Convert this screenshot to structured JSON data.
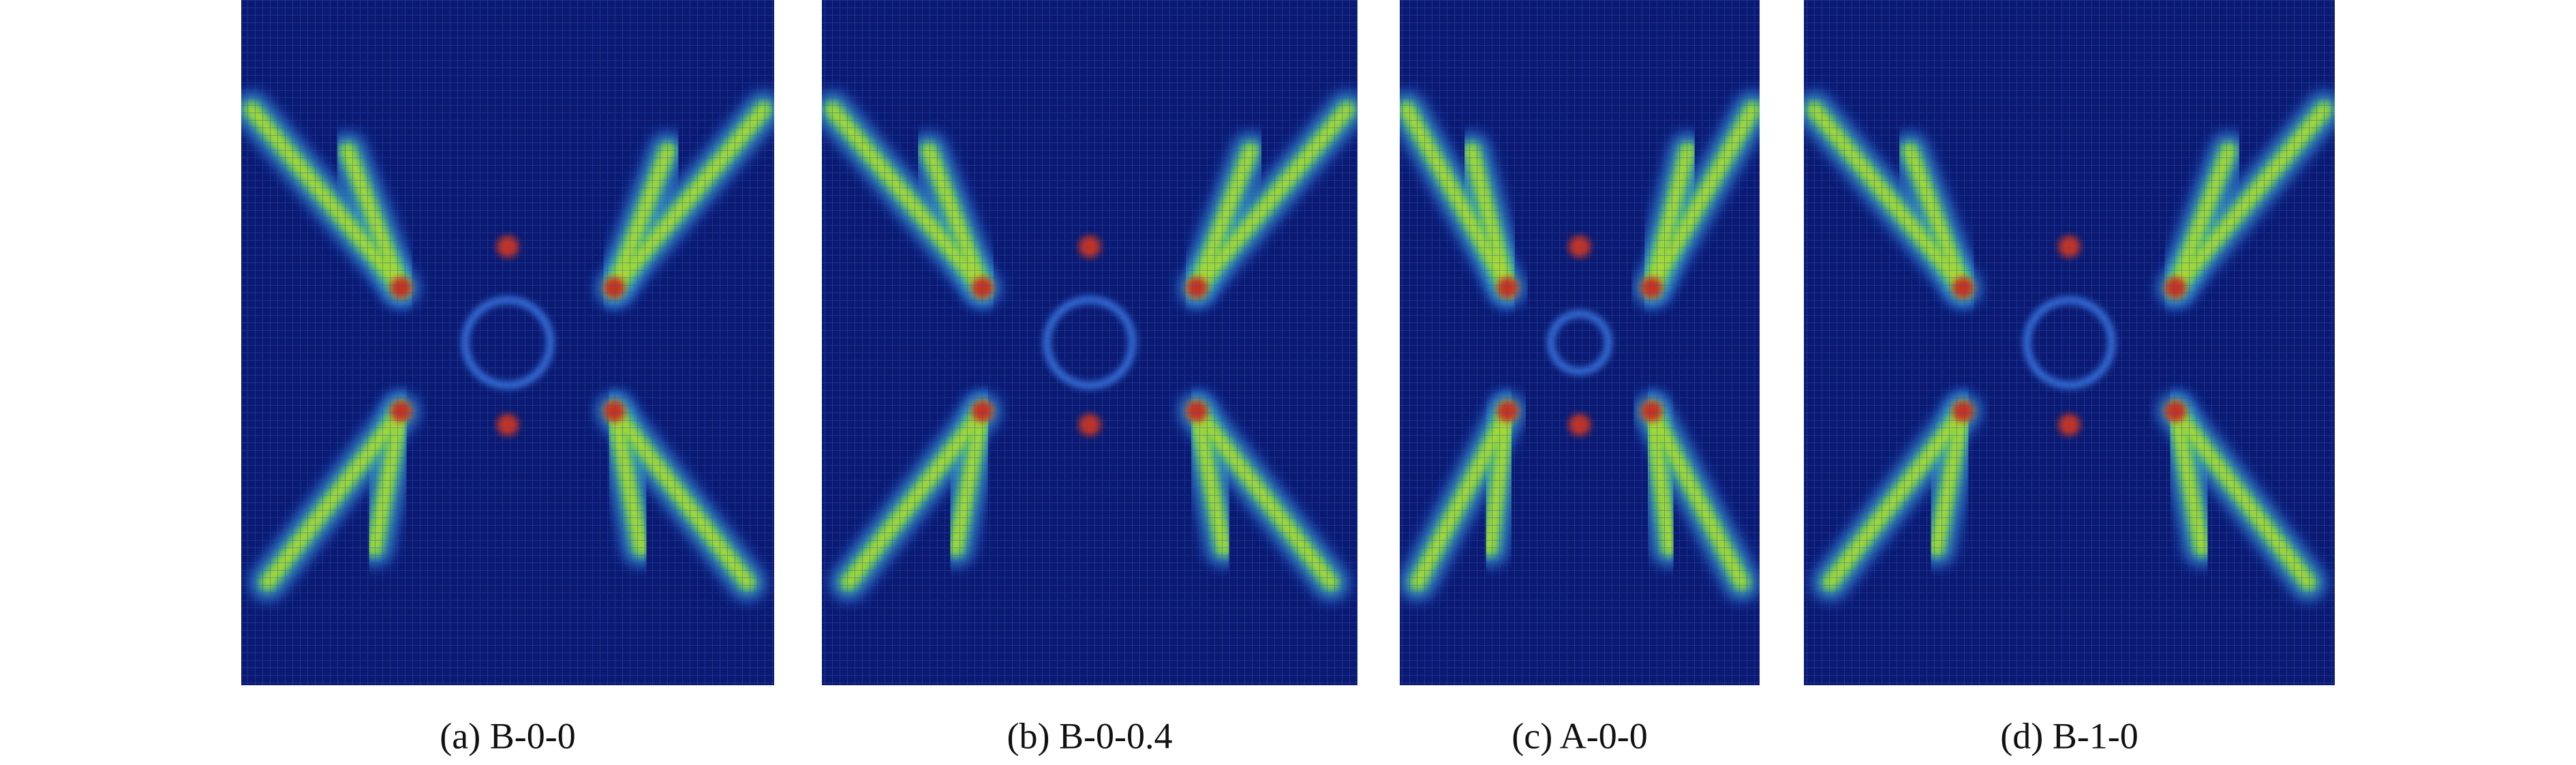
{
  "figure": {
    "panels": [
      {
        "label": "(a) B-0-0"
      },
      {
        "label": "(b) B-0-0.4"
      },
      {
        "label": "(c) A-0-0"
      },
      {
        "label": "(d) B-1-0"
      }
    ]
  }
}
